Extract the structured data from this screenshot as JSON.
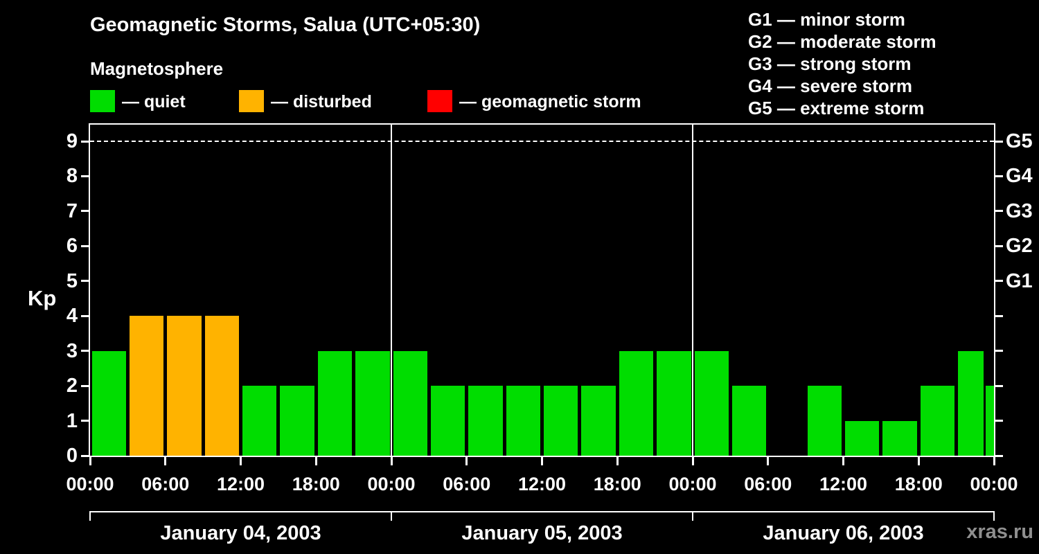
{
  "title": "Geomagnetic Storms, Salua (UTC+05:30)",
  "subtitle": "Magnetosphere",
  "legend": [
    {
      "label": "— quiet",
      "color": "#00dd00"
    },
    {
      "label": "— disturbed",
      "color": "#ffb300"
    },
    {
      "label": "— geomagnetic storm",
      "color": "#ff0000"
    }
  ],
  "storm_scale": [
    "G1 — minor storm",
    "G2 — moderate storm",
    "G3 — strong storm",
    "G4 — severe storm",
    "G5 — extreme storm"
  ],
  "watermark": "xras.ru",
  "chart_data": {
    "type": "bar",
    "title": "Geomagnetic Storms, Salua (UTC+05:30)",
    "ylabel": "Kp",
    "ylim": [
      0,
      9
    ],
    "y_ticks": [
      0,
      1,
      2,
      3,
      4,
      5,
      6,
      7,
      8,
      9
    ],
    "right_axis": [
      {
        "kp": 5,
        "label": "G1"
      },
      {
        "kp": 6,
        "label": "G2"
      },
      {
        "kp": 7,
        "label": "G3"
      },
      {
        "kp": 8,
        "label": "G4"
      },
      {
        "kp": 9,
        "label": "G5"
      }
    ],
    "x_tick_labels": [
      "00:00",
      "06:00",
      "12:00",
      "18:00",
      "00:00",
      "06:00",
      "12:00",
      "18:00",
      "00:00",
      "06:00",
      "12:00",
      "18:00",
      "00:00"
    ],
    "hours_per_bar": 3,
    "days": [
      {
        "date": "January 04, 2003",
        "values": [
          3,
          4,
          4,
          4,
          2,
          2,
          3,
          3
        ]
      },
      {
        "date": "January 05, 2003",
        "values": [
          3,
          2,
          2,
          2,
          2,
          2,
          3,
          3
        ]
      },
      {
        "date": "January 06, 2003",
        "values": [
          3,
          2,
          0,
          2,
          1,
          1,
          2,
          3
        ]
      }
    ],
    "partial_next_value": 2,
    "colors": {
      "quiet": "#00dd00",
      "disturbed": "#ffb300",
      "storm": "#ff0000"
    },
    "color_rule": {
      "quiet": "Kp <= 3",
      "disturbed": "Kp = 4",
      "storm": "Kp >= 5"
    },
    "grid": "dashed line at Kp 9 only",
    "legend_position": "top"
  }
}
